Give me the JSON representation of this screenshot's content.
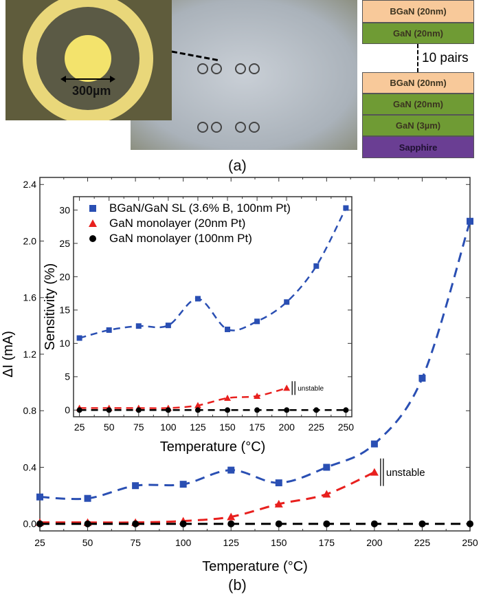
{
  "panel_a": {
    "label": "(a)",
    "scale_bar": "300µm",
    "stack": {
      "layers_top": [
        "BGaN (20nm)",
        "GaN (20nm)"
      ],
      "repeat": "10 pairs",
      "layers_bottom": [
        "BGaN (20nm)",
        "GaN (20nm)",
        "GaN (3µm)",
        "Sapphire"
      ]
    },
    "colors": {
      "BGaN": "#f8c99a",
      "GaN": "#6f9b34",
      "Sapphire": "#6a3e93"
    }
  },
  "panel_b": {
    "label": "(b)"
  },
  "chart_data": [
    {
      "type": "scatter",
      "role": "main",
      "xlabel": "Temperature (°C)",
      "ylabel": "ΔI (mA)",
      "xlim": [
        25,
        250
      ],
      "ylim": [
        -0.05,
        2.45
      ],
      "xticks": [
        25,
        50,
        75,
        100,
        125,
        150,
        175,
        200,
        225,
        250
      ],
      "yticks": [
        "0.0",
        "0.4",
        "0.8",
        "1.2",
        "1.6",
        "2.0",
        "2.4"
      ],
      "x": [
        25,
        50,
        75,
        100,
        125,
        150,
        175,
        200,
        225,
        250
      ],
      "series": [
        {
          "color": "#2a4fb3",
          "marker": "square",
          "values": [
            0.19,
            0.18,
            0.27,
            0.28,
            0.38,
            0.29,
            0.4,
            0.565,
            1.03,
            2.14
          ]
        },
        {
          "color": "#e8201e",
          "marker": "triangle",
          "values": [
            0.01,
            0.01,
            0.01,
            0.02,
            0.05,
            0.14,
            0.21,
            0.365,
            null,
            null
          ]
        },
        {
          "color": "#000000",
          "marker": "circle",
          "values": [
            0,
            0,
            0,
            0,
            0,
            0,
            0,
            0,
            0,
            0
          ]
        }
      ],
      "annotation": "unstable"
    },
    {
      "type": "scatter",
      "role": "inset",
      "xlabel": "Temperature (°C)",
      "ylabel": "Sensitivity (%)",
      "xlim": [
        20,
        255
      ],
      "ylim": [
        -1,
        32
      ],
      "xticks": [
        25,
        50,
        75,
        100,
        125,
        150,
        175,
        200,
        225,
        250
      ],
      "yticks": [
        0,
        5,
        10,
        15,
        20,
        25,
        30
      ],
      "x": [
        25,
        50,
        75,
        100,
        125,
        150,
        175,
        200,
        225,
        250
      ],
      "legend": "top-left",
      "series": [
        {
          "name": "BGaN/GaN SL (3.6% B, 100nm Pt)",
          "color": "#2a4fb3",
          "marker": "square",
          "values": [
            10.8,
            12.0,
            12.6,
            12.7,
            16.7,
            12.1,
            13.3,
            16.2,
            21.6,
            30.3
          ]
        },
        {
          "name": "GaN monolayer (20nm Pt)",
          "color": "#e8201e",
          "marker": "triangle",
          "values": [
            0.3,
            0.3,
            0.3,
            0.3,
            0.7,
            1.8,
            2.1,
            3.3,
            null,
            null
          ]
        },
        {
          "name": "GaN monolayer (100nm Pt)",
          "color": "#000000",
          "marker": "circle",
          "values": [
            0,
            0,
            0,
            0,
            0,
            0,
            0,
            0,
            0,
            0
          ]
        }
      ],
      "annotation": "unstable"
    }
  ]
}
